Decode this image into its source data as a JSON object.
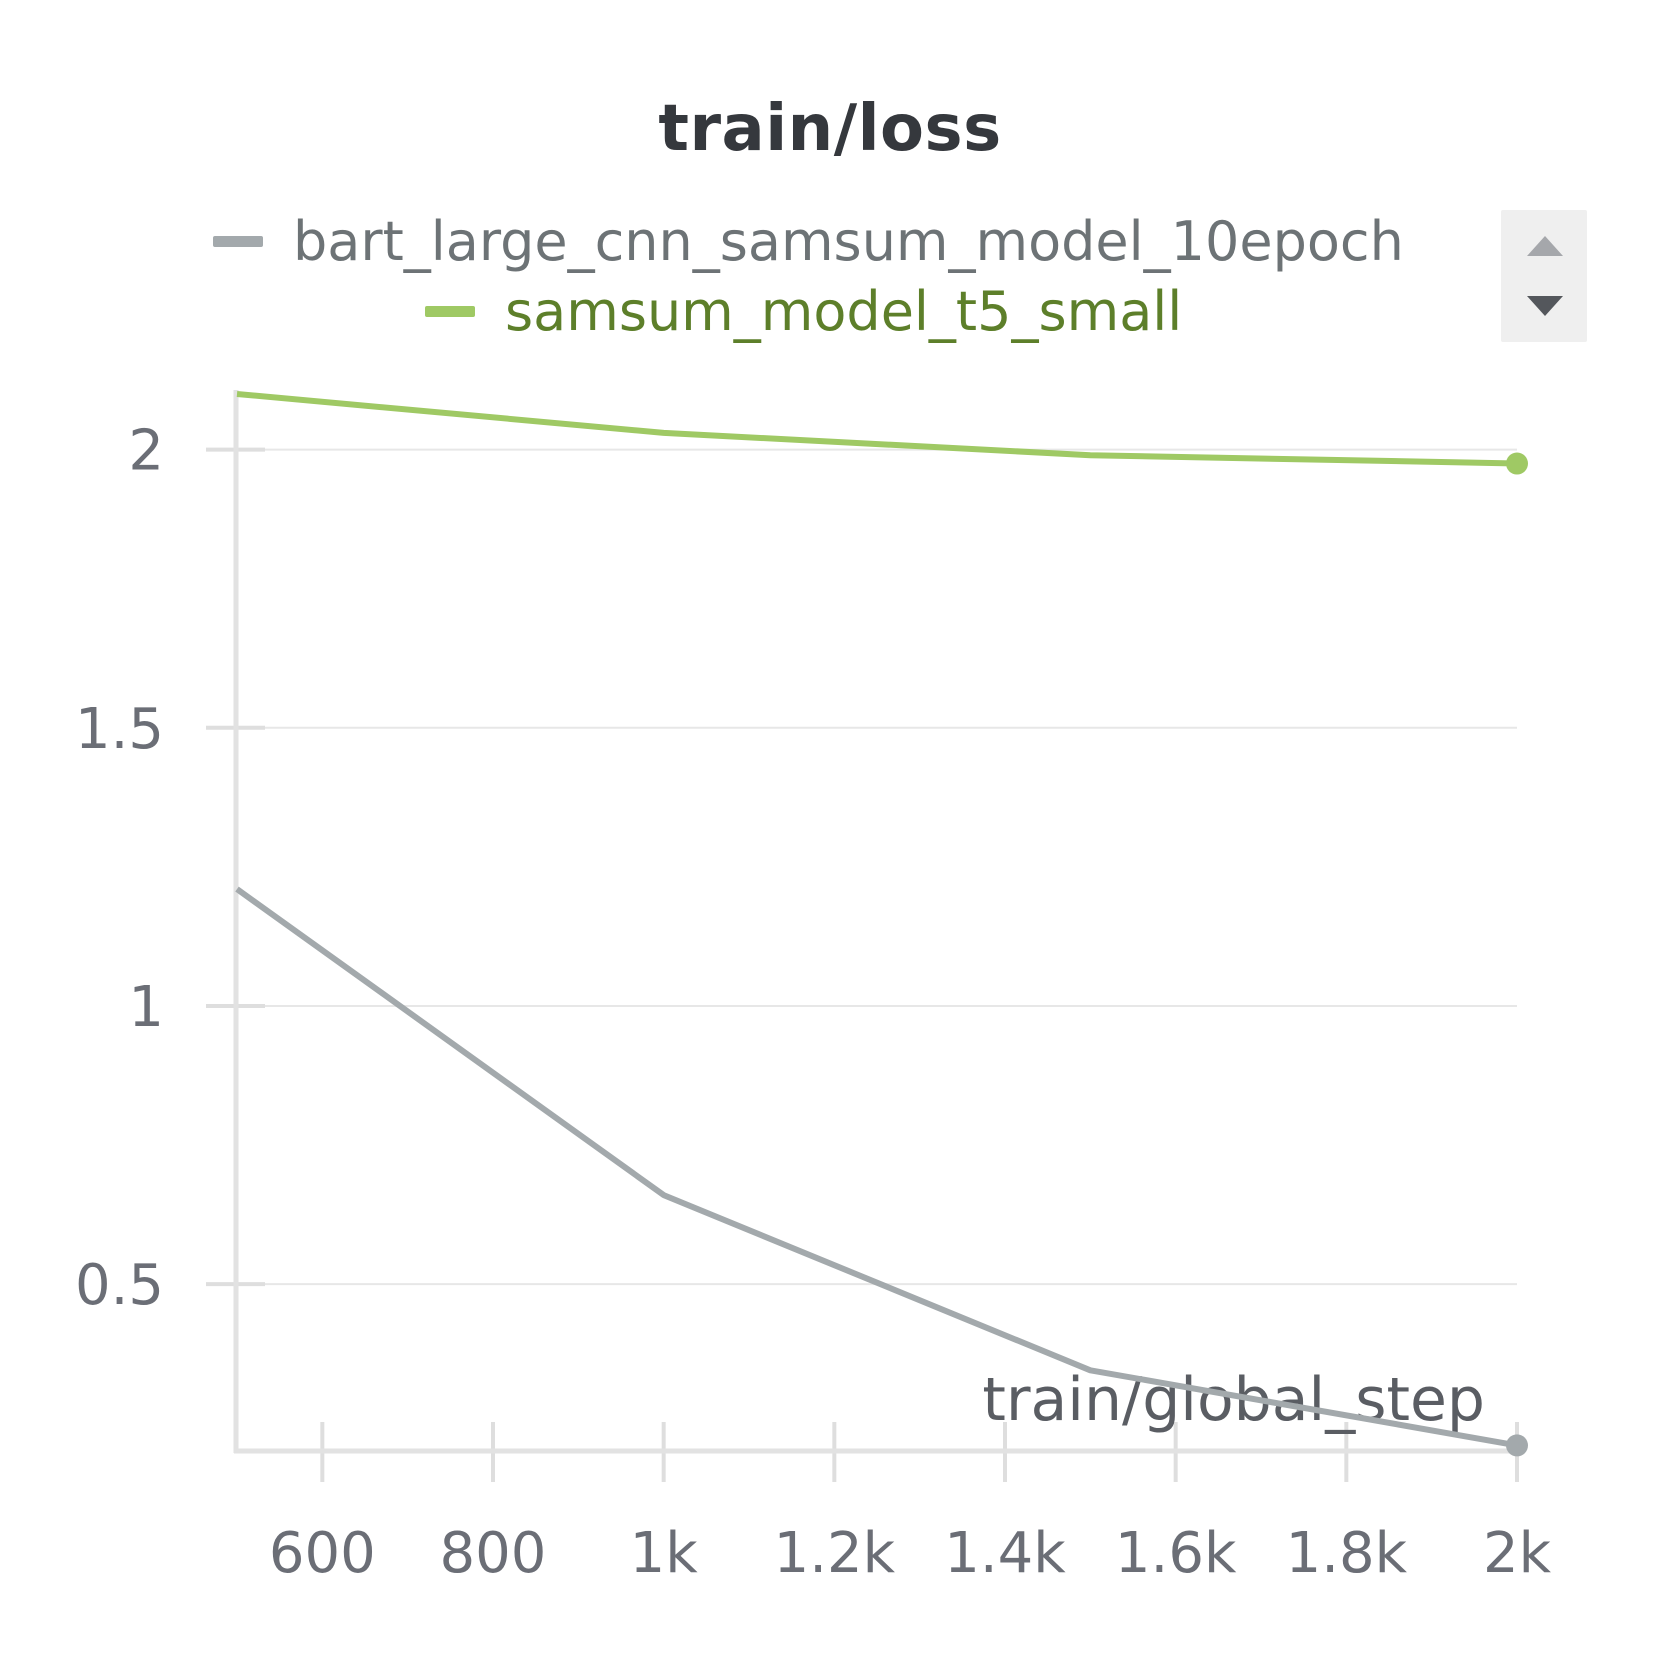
{
  "chart_data": {
    "type": "line",
    "title": "train/loss",
    "xlabel": "train/global_step",
    "ylabel": "",
    "xlim": [
      500,
      2000
    ],
    "ylim": [
      0.2,
      2.1
    ],
    "x_ticks": [
      600,
      800,
      1000,
      1200,
      1400,
      1600,
      1800,
      2000
    ],
    "x_tick_labels": [
      "600",
      "800",
      "1k",
      "1.2k",
      "1.4k",
      "1.6k",
      "1.8k",
      "2k"
    ],
    "y_ticks": [
      0.5,
      1,
      1.5,
      2
    ],
    "y_tick_labels": [
      "0.5",
      "1",
      "1.5",
      "2"
    ],
    "grid": true,
    "legend_position": "top",
    "series": [
      {
        "name": "bart_large_cnn_samsum_model_10epoch",
        "color": "#a3a9ac",
        "text_color": "#6d7376",
        "x": [
          500,
          1000,
          1500,
          2000
        ],
        "y": [
          1.21,
          0.66,
          0.345,
          0.21
        ]
      },
      {
        "name": "samsum_model_t5_small",
        "color": "#9fc964",
        "text_color": "#5d7f2a",
        "x": [
          500,
          1000,
          1500,
          2000
        ],
        "y": [
          2.1,
          2.03,
          1.99,
          1.975
        ]
      }
    ]
  }
}
